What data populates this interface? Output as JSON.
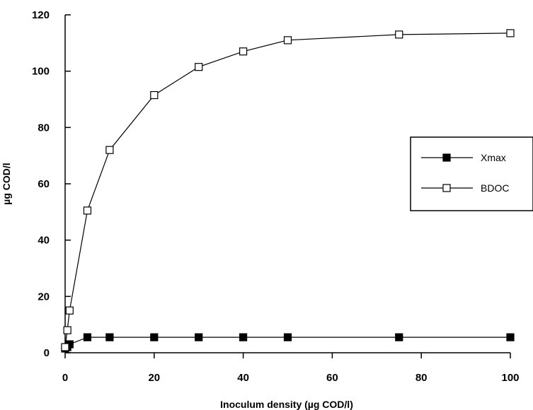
{
  "chart_data": {
    "type": "line",
    "title": "",
    "xlabel": "Inoculum density (µg COD/l)",
    "ylabel": "µg COD/l",
    "xlim": [
      0,
      100
    ],
    "ylim": [
      0,
      120
    ],
    "xticks": [
      0,
      20,
      40,
      60,
      80,
      100
    ],
    "yticks": [
      0,
      20,
      40,
      60,
      80,
      100,
      120
    ],
    "grid": false,
    "legend_position": "right",
    "series": [
      {
        "name": "Xmax",
        "marker": "filled-square",
        "points": [
          [
            0,
            1.5
          ],
          [
            0.5,
            2
          ],
          [
            1,
            3
          ],
          [
            5,
            5.5
          ],
          [
            10,
            5.5
          ],
          [
            20,
            5.5
          ],
          [
            30,
            5.5
          ],
          [
            40,
            5.5
          ],
          [
            50,
            5.5
          ],
          [
            75,
            5.5
          ],
          [
            100,
            5.5
          ]
        ]
      },
      {
        "name": "BDOC",
        "marker": "open-square",
        "points": [
          [
            0,
            2
          ],
          [
            0.5,
            8
          ],
          [
            1,
            15
          ],
          [
            5,
            50.5
          ],
          [
            10,
            72
          ],
          [
            20,
            91.5
          ],
          [
            30,
            101.5
          ],
          [
            40,
            107
          ],
          [
            50,
            111
          ],
          [
            75,
            113
          ],
          [
            100,
            113.5
          ]
        ]
      }
    ]
  }
}
